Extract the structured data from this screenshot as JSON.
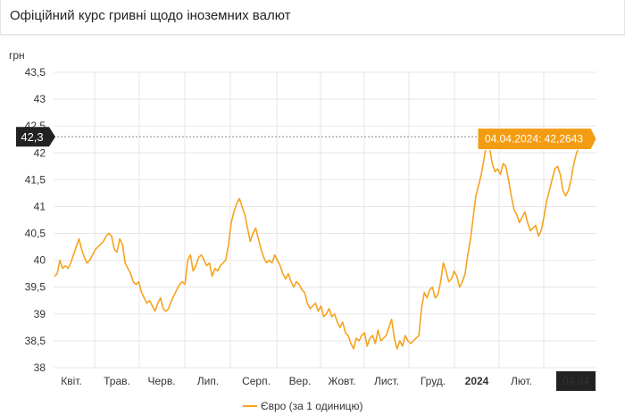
{
  "header": {
    "title": "Офіційний курс гривні щодо іноземних валют"
  },
  "colors": {
    "series": "#f6a31e",
    "grid": "#e6e6e6",
    "axis_label_bg": "#222222",
    "tooltip_bg": "#f39c12"
  },
  "chart_data": {
    "type": "line",
    "ylabel": "грн",
    "ylim": [
      38,
      43.5
    ],
    "yticks": [
      "43,5",
      "43",
      "42,5",
      "42",
      "41,5",
      "41",
      "40,5",
      "40",
      "39,5",
      "39",
      "38,5",
      "38"
    ],
    "xticks": [
      "Квіт.",
      "Трав.",
      "Черв.",
      "Лип.",
      "Серп.",
      "Вер.",
      "Жовт.",
      "Лист.",
      "Груд.",
      "2024",
      "Лют.",
      "04.04"
    ],
    "crosshair_label": "42,3",
    "tooltip": "04.04.2024: 42,2643",
    "legend": "Євро (за 1 одиницю)",
    "legend_position": "bottom",
    "grid": true,
    "series": [
      {
        "name": "Євро (за 1 одиницю)",
        "values": [
          39.7,
          39.75,
          40.0,
          39.85,
          39.9,
          39.85,
          39.95,
          40.1,
          40.25,
          40.4,
          40.2,
          40.05,
          39.95,
          40.0,
          40.1,
          40.2,
          40.25,
          40.3,
          40.35,
          40.45,
          40.5,
          40.45,
          40.2,
          40.15,
          40.4,
          40.3,
          39.95,
          39.85,
          39.75,
          39.6,
          39.55,
          39.6,
          39.4,
          39.3,
          39.2,
          39.25,
          39.15,
          39.05,
          39.2,
          39.3,
          39.1,
          39.05,
          39.1,
          39.25,
          39.35,
          39.45,
          39.55,
          39.6,
          39.55,
          40.0,
          40.1,
          39.8,
          39.9,
          40.05,
          40.1,
          40.0,
          39.9,
          39.95,
          39.7,
          39.85,
          39.8,
          39.9,
          39.95,
          40.0,
          40.3,
          40.7,
          40.9,
          41.05,
          41.15,
          41.0,
          40.85,
          40.6,
          40.35,
          40.5,
          40.6,
          40.4,
          40.2,
          40.05,
          39.95,
          40.0,
          39.95,
          40.1,
          40.0,
          39.9,
          39.75,
          39.65,
          39.75,
          39.6,
          39.5,
          39.6,
          39.55,
          39.45,
          39.4,
          39.2,
          39.1,
          39.15,
          39.2,
          39.05,
          39.15,
          38.95,
          39.0,
          39.1,
          38.95,
          39.0,
          38.85,
          38.75,
          38.85,
          38.65,
          38.6,
          38.45,
          38.35,
          38.55,
          38.5,
          38.6,
          38.65,
          38.4,
          38.55,
          38.6,
          38.45,
          38.7,
          38.5,
          38.55,
          38.6,
          38.75,
          38.9,
          38.55,
          38.35,
          38.5,
          38.4,
          38.6,
          38.5,
          38.45,
          38.5,
          38.55,
          38.6,
          39.1,
          39.4,
          39.3,
          39.45,
          39.5,
          39.3,
          39.35,
          39.6,
          39.95,
          39.8,
          39.6,
          39.65,
          39.8,
          39.7,
          39.5,
          39.6,
          39.75,
          40.1,
          40.4,
          40.8,
          41.2,
          41.4,
          41.6,
          41.9,
          42.2,
          42.1,
          41.8,
          41.65,
          41.7,
          41.6,
          41.8,
          41.75,
          41.5,
          41.2,
          40.95,
          40.85,
          40.7,
          40.8,
          40.9,
          40.7,
          40.55,
          40.6,
          40.65,
          40.45,
          40.55,
          40.8,
          41.1,
          41.3,
          41.5,
          41.7,
          41.75,
          41.6,
          41.3,
          41.2,
          41.3,
          41.5,
          41.8,
          42.0,
          42.1,
          42.3,
          42.4,
          42.45,
          42.3,
          42.26
        ]
      }
    ]
  }
}
